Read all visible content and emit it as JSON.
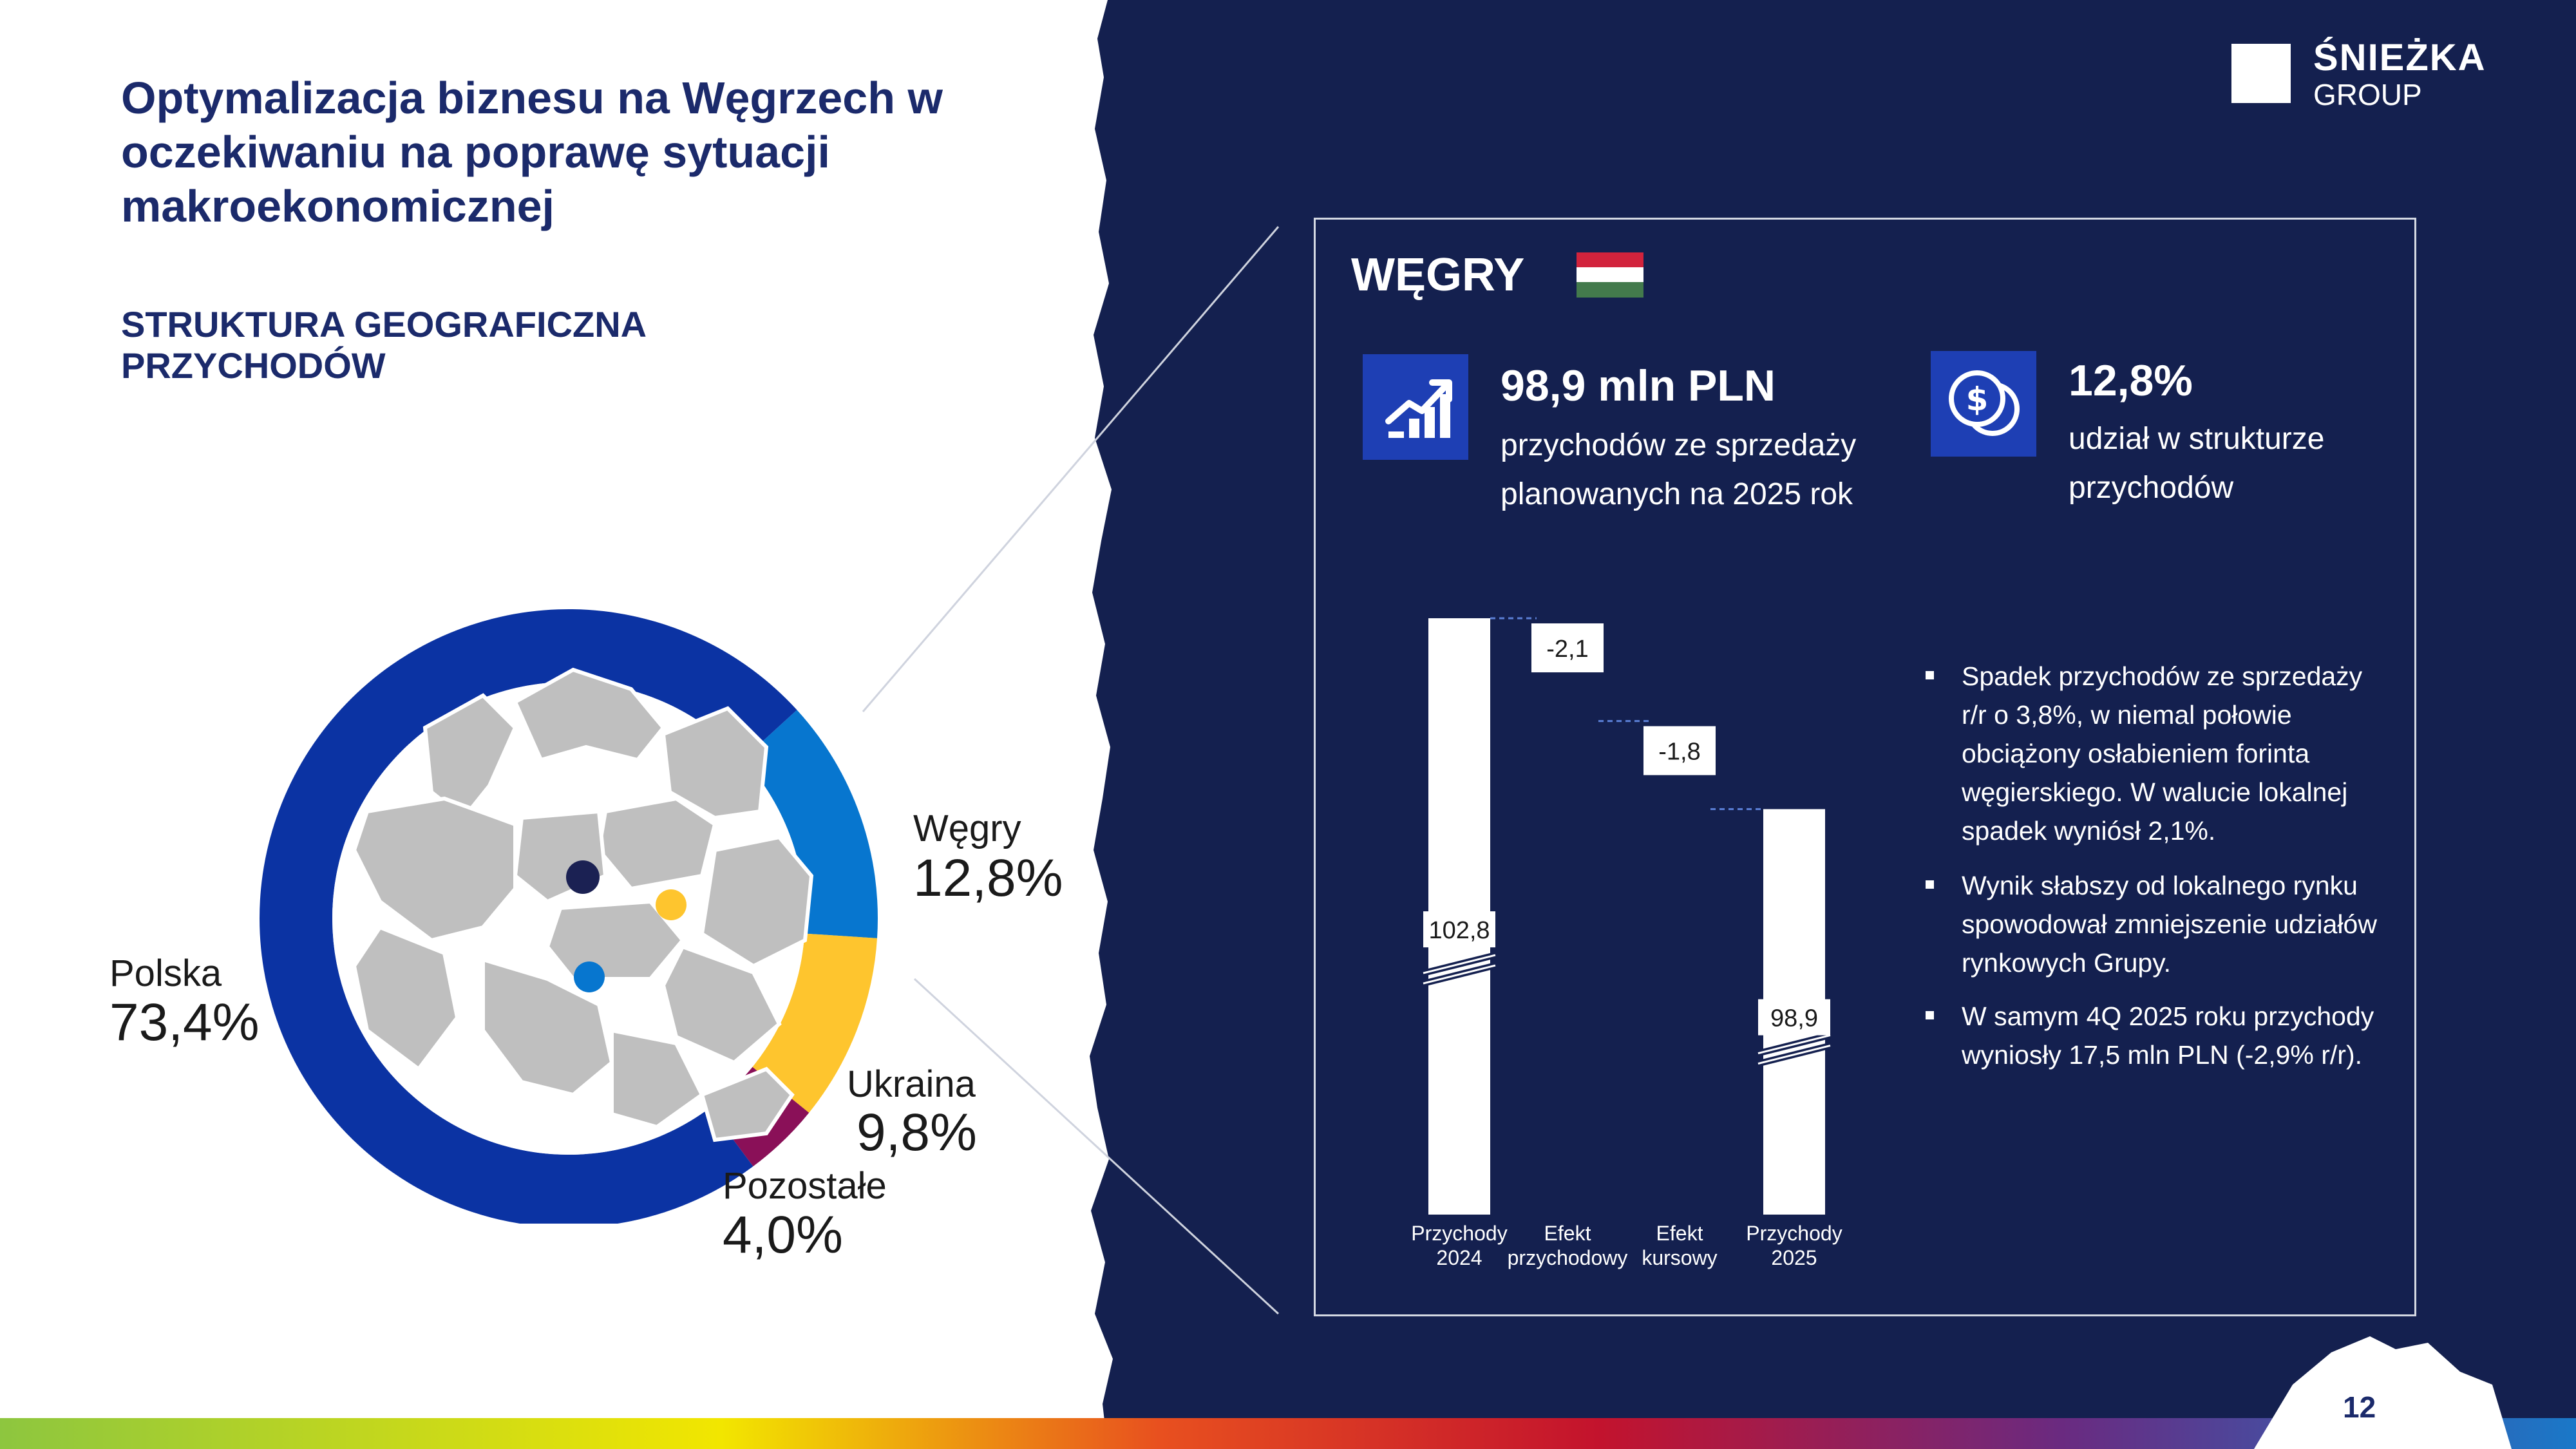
{
  "title": "Optymalizacja biznesu na Węgrzech w oczekiwaniu na poprawę sytuacji makroekonomicznej",
  "subtitle": "STRUKTURA GEOGRAFICZNA PRZYCHODÓW",
  "logo": {
    "name": "ŚNIEŻKA",
    "group": "GROUP"
  },
  "page_number": "12",
  "colors": {
    "navy": "#14204f",
    "polska": "#0b33a3",
    "wegry": "#0776cf",
    "ukraina": "#fec52e",
    "pozostale": "#8a1058",
    "map_gray": "#bfbfbf"
  },
  "donut_labels": [
    {
      "name": "Węgry",
      "value": "12,8%"
    },
    {
      "name": "Polska",
      "value": "73,4%"
    },
    {
      "name": "Ukraina",
      "value": "9,8%"
    },
    {
      "name": "Pozostałe",
      "value": "4,0%"
    }
  ],
  "panel": {
    "title": "WĘGRY",
    "flag_icon": "hungary-flag",
    "kpi1": {
      "icon": "growth-chart-icon",
      "value": "98,9 mln PLN",
      "desc": "przychodów ze sprzedaży planowanych na 2025 rok"
    },
    "kpi2": {
      "icon": "coins-icon",
      "value": "12,8%",
      "desc": "udział w strukturze przychodów"
    },
    "bullets": [
      "Spadek przychodów ze sprzedaży r/r o 3,8%, w niemal połowie obciążony osłabieniem forinta węgierskiego. W walucie lokalnej spadek wyniósł 2,1%.",
      "Wynik słabszy od lokalnego rynku spowodował zmniejszenie udziałów rynkowych Grupy.",
      "W samym 4Q 2025 roku przychody wyniosły 17,5 mln PLN (-2,9% r/r)."
    ]
  },
  "chart_data": [
    {
      "type": "pie",
      "title": "",
      "categories": [
        "Polska",
        "Węgry",
        "Ukraina",
        "Pozostałe"
      ],
      "values": [
        73.4,
        12.8,
        9.8,
        4.0
      ],
      "unit": "%",
      "donut": true
    },
    {
      "type": "bar",
      "subtype": "waterfall",
      "title": "",
      "categories": [
        "Przychody 2024",
        "Efekt przychodowy",
        "Efekt kursowy",
        "Przychody 2025"
      ],
      "values": [
        102.8,
        -2.1,
        -1.8,
        98.9
      ],
      "data_labels": [
        "102,8",
        "-2,1",
        "-1,8",
        "98,9"
      ],
      "kinds": [
        "total",
        "delta",
        "delta",
        "total"
      ],
      "broken_axis": true,
      "xlabel": "",
      "ylabel": ""
    }
  ]
}
